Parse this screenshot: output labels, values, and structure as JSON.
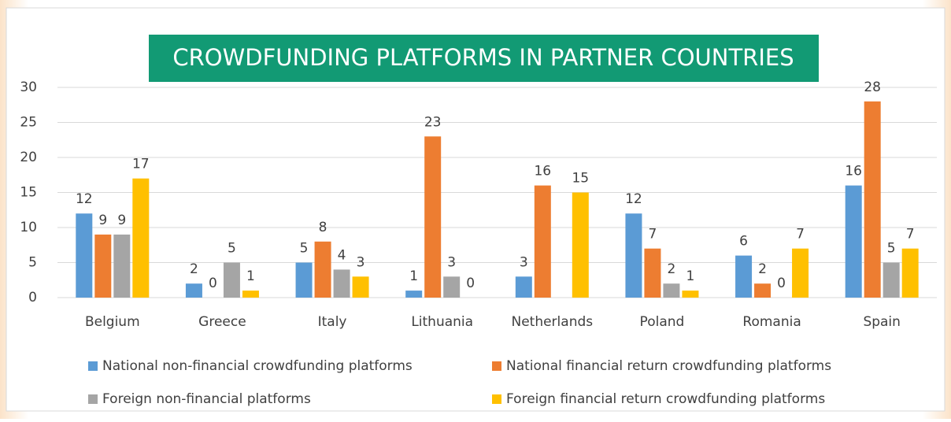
{
  "chart_data": {
    "type": "bar",
    "title": "CROWDFUNDING PLATFORMS IN PARTNER COUNTRIES",
    "categories": [
      "Belgium",
      "Greece",
      "Italy",
      "Lithuania",
      "Netherlands",
      "Poland",
      "Romania",
      "Spain"
    ],
    "series": [
      {
        "name": "National non-financial crowdfunding platforms",
        "color": "#5b9bd5",
        "values": [
          12,
          2,
          5,
          1,
          3,
          12,
          6,
          16
        ]
      },
      {
        "name": "National financial return crowdfunding platforms",
        "color": "#ed7d31",
        "values": [
          9,
          0,
          8,
          23,
          16,
          7,
          2,
          28
        ]
      },
      {
        "name": "Foreign non-financial platforms",
        "color": "#a5a5a5",
        "values": [
          9,
          5,
          4,
          3,
          null,
          2,
          0,
          5
        ]
      },
      {
        "name": "Foreign financial return crowdfunding platforms",
        "color": "#ffc000",
        "values": [
          17,
          1,
          3,
          0,
          15,
          1,
          7,
          7
        ]
      }
    ],
    "ylim": [
      0,
      30
    ],
    "yticks": [
      0,
      5,
      10,
      15,
      20,
      25,
      30
    ],
    "grid": true,
    "legend": "bottom"
  }
}
